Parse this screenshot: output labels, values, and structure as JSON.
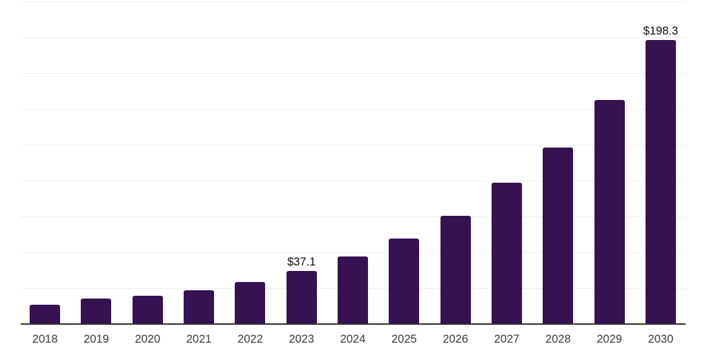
{
  "chart_data": {
    "type": "bar",
    "title": "",
    "xlabel": "",
    "ylabel": "",
    "categories": [
      "2018",
      "2019",
      "2020",
      "2021",
      "2022",
      "2023",
      "2024",
      "2025",
      "2026",
      "2027",
      "2028",
      "2029",
      "2030"
    ],
    "values": [
      13.5,
      17.8,
      19.7,
      23.6,
      29.3,
      37.1,
      47.1,
      59.6,
      75.5,
      98.5,
      123.1,
      156.3,
      198.3
    ],
    "point_labels": {
      "2023": "$37.1",
      "2030": "$198.3"
    },
    "ylim": [
      0,
      225
    ],
    "gridline_step": 25,
    "grid": "horizontal-only",
    "legend": "none",
    "y_axis_tick_labels": "none",
    "colors": {
      "bar": "#361253",
      "gridline": "#efefef",
      "axis_line": "#2e2e2e",
      "x_tick_label": "#3a3a3a",
      "point_label": "#0a0a0a",
      "background": "#ffffff"
    }
  }
}
